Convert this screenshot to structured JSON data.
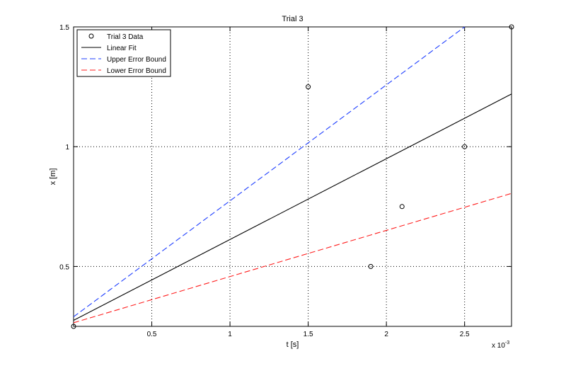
{
  "chart_data": {
    "type": "line",
    "title": "Trial 3",
    "xlabel": "t [s]",
    "ylabel": "x [m]",
    "x_exponent_label": "x 10",
    "x_exponent_power": "-3",
    "xlim": [
      0.0,
      2.8
    ],
    "ylim": [
      0.25,
      1.5
    ],
    "x_ticks": [
      0.5,
      1,
      1.5,
      2,
      2.5
    ],
    "x_tick_labels": [
      "0.5",
      "1",
      "1.5",
      "2",
      "2.5"
    ],
    "y_ticks": [
      0.5,
      1,
      1.5
    ],
    "y_tick_labels": [
      "0.5",
      "1",
      "1.5"
    ],
    "grid": true,
    "grid_style": "dotted",
    "legend_position": "top-left",
    "series": [
      {
        "name": "Trial 3 Data",
        "kind": "scatter",
        "marker": "circle",
        "color": "#000000",
        "x": [
          0.0,
          1.5,
          1.9,
          2.1,
          2.5,
          2.8
        ],
        "y": [
          0.25,
          1.25,
          0.5,
          0.75,
          1.0,
          1.5
        ]
      },
      {
        "name": "Linear Fit",
        "kind": "line",
        "style": "solid",
        "color": "#000000",
        "x": [
          0.0,
          2.8
        ],
        "y": [
          0.275,
          1.22
        ]
      },
      {
        "name": "Upper Error Bound",
        "kind": "line",
        "style": "dashed",
        "color": "#1f3fff",
        "x": [
          0.0,
          2.5
        ],
        "y": [
          0.29,
          1.5
        ]
      },
      {
        "name": "Lower Error Bound",
        "kind": "line",
        "style": "dashed",
        "color": "#ff1f1f",
        "x": [
          0.0,
          2.8
        ],
        "y": [
          0.265,
          0.805
        ]
      }
    ]
  }
}
